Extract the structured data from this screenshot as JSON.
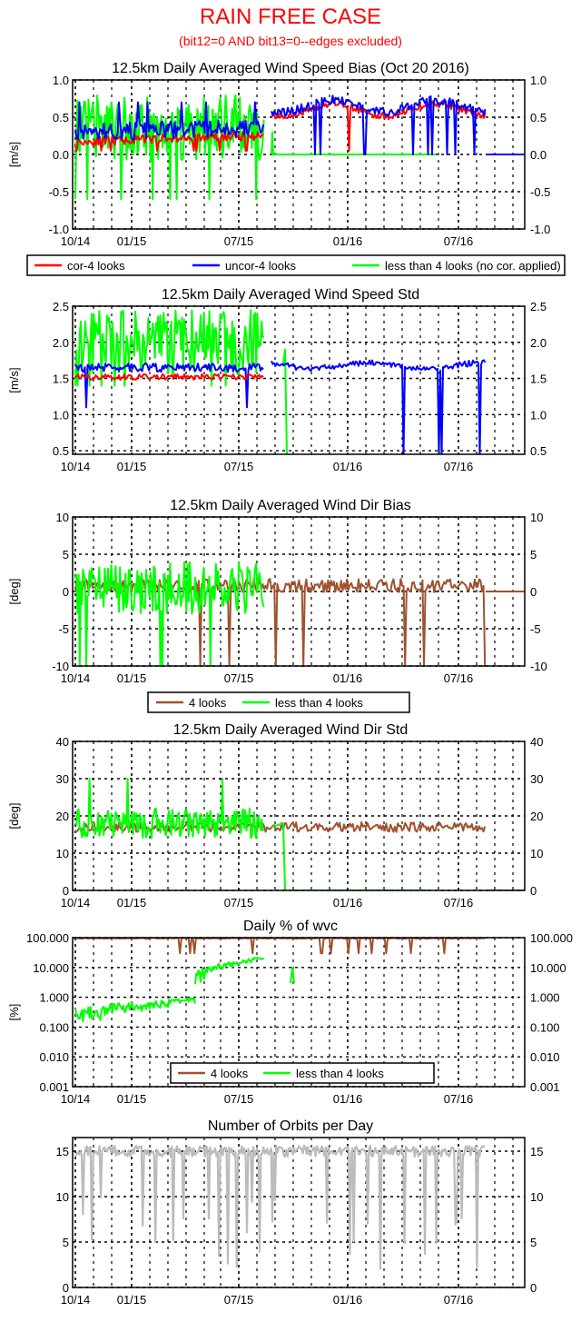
{
  "header": {
    "title": "RAIN FREE CASE",
    "subtitle": "(bit12=0 AND bit13=0--edges excluded)"
  },
  "colors": {
    "cor": "#ff0000",
    "uncor": "#0000ff",
    "less4": "#00ff00",
    "looks4": "#a0522d",
    "orbits": "#bbbbbb"
  },
  "x_ticks": [
    "10/14",
    "01/15",
    "07/15",
    "01/16",
    "07/16"
  ],
  "chart_data": [
    {
      "type": "line",
      "title": "12.5km Daily Averaged Wind Speed Bias (Oct 20 2016)",
      "ylabel": "[m/s]",
      "ylim": [
        -1.0,
        1.0
      ],
      "y_ticks": [
        "1.0",
        "0.5",
        "0.0",
        "-0.5",
        "-1.0"
      ],
      "legend": [
        "cor-4 looks",
        "uncor-4 looks",
        "less than 4 looks (no cor. applied)"
      ],
      "series": [
        {
          "name": "cor-4 looks",
          "values": [
            0.2,
            0.25,
            0.2,
            0.22,
            0.25,
            0.3,
            0.25,
            0.3,
            0.3,
            0.28,
            0.3,
            0.5,
            0.62,
            0.7,
            0.6,
            0.4,
            0.55,
            0.62,
            0.6,
            0.5,
            0.55,
            0.58,
            0.6,
            0.58
          ]
        },
        {
          "name": "uncor-4 looks",
          "values": [
            0.35,
            0.3,
            0.25,
            0.28,
            0.3,
            0.35,
            0.3,
            0.35,
            0.35,
            0.33,
            0.35,
            0.55,
            0.65,
            0.75,
            0.65,
            0.45,
            0.6,
            0.65,
            0.62,
            0.55,
            0.6,
            0.62,
            0.62,
            0.6
          ]
        },
        {
          "name": "less than 4 looks (no cor. applied)",
          "values": [
            0.6,
            0.5,
            0.2,
            0.4,
            0.3,
            0.5,
            0.2,
            0.5,
            0.4,
            0.3,
            0.4,
            0.0,
            0.0,
            0.0,
            0.0,
            0.0,
            0.0
          ]
        }
      ]
    },
    {
      "type": "line",
      "title": "12.5km Daily Averaged Wind Speed Std",
      "ylabel": "[m/s]",
      "ylim": [
        0.45,
        2.5
      ],
      "y_ticks": [
        "2.5",
        "2.0",
        "1.5",
        "1.0",
        "0.5"
      ],
      "series": [
        {
          "name": "cor-4 looks",
          "values": [
            1.55,
            1.5,
            1.52,
            1.5,
            1.5,
            1.48,
            1.5,
            1.52,
            1.48,
            1.5,
            1.45
          ]
        },
        {
          "name": "uncor-4 looks",
          "values": [
            1.7,
            1.65,
            1.65,
            1.6,
            1.65,
            1.6,
            1.62,
            1.65,
            1.6,
            1.62,
            1.6,
            1.72,
            1.68,
            1.65,
            1.65,
            1.7,
            1.72,
            1.75,
            1.72,
            1.7,
            1.72,
            1.72
          ]
        },
        {
          "name": "less than 4 looks (no cor. applied)",
          "values": [
            2.2,
            2.0,
            1.8,
            2.1,
            1.9,
            2.0,
            1.8,
            2.1,
            2.0,
            1.9,
            1.7,
            1.8
          ]
        }
      ]
    },
    {
      "type": "line",
      "title": "12.5km Daily Averaged Wind Dir Bias",
      "ylabel": "[deg]",
      "ylim": [
        -10,
        10
      ],
      "y_ticks": [
        "10",
        "5",
        "0",
        "-5",
        "-10"
      ],
      "legend": [
        "4 looks",
        "less than 4 looks"
      ],
      "series": [
        {
          "name": "4 looks",
          "values": [
            1,
            1.5,
            0.5,
            1,
            1,
            0.5,
            1,
            1.5,
            1,
            1,
            0.5,
            1,
            1.5,
            1,
            0.5,
            1,
            1.5,
            1,
            1.2,
            1,
            0.8,
            1,
            0.5,
            0
          ]
        },
        {
          "name": "less than 4 looks",
          "values": [
            2,
            -1,
            1,
            3,
            -2,
            2,
            0,
            1,
            2,
            -1,
            1,
            0,
            0,
            0,
            0,
            0
          ]
        }
      ]
    },
    {
      "type": "line",
      "title": "12.5km Daily Averaged Wind Dir Std",
      "ylabel": "[deg]",
      "ylim": [
        0,
        40
      ],
      "y_ticks": [
        "40",
        "30",
        "20",
        "10",
        "0"
      ],
      "series": [
        {
          "name": "4 looks",
          "values": [
            16,
            15,
            16,
            15,
            16,
            17,
            16,
            16,
            17,
            17,
            16,
            17,
            17,
            16,
            16,
            17,
            17,
            18,
            18,
            17,
            18,
            18,
            17,
            17
          ]
        },
        {
          "name": "less than 4 looks",
          "values": [
            18,
            17,
            19,
            17,
            18,
            19,
            17,
            18,
            20,
            18,
            17,
            19,
            0,
            0,
            0,
            0
          ]
        }
      ]
    },
    {
      "type": "line",
      "title": "Daily % of wvc",
      "ylabel": "[%]",
      "ylim": [
        0.001,
        100
      ],
      "yscale": "log",
      "y_ticks": [
        "100.000",
        "10.000",
        "1.000",
        "0.100",
        "0.010",
        "0.001"
      ],
      "legend": [
        "4 looks",
        "less than 4 looks"
      ],
      "series": [
        {
          "name": "4 looks",
          "values": [
            100,
            100,
            100,
            100,
            100,
            100,
            100,
            100,
            100,
            100,
            100,
            100,
            100,
            100,
            100,
            100
          ]
        },
        {
          "name": "less than 4 looks",
          "values": [
            0.6,
            0.3,
            0.2,
            0.5,
            0.4,
            0.5,
            0.6,
            0.5,
            3,
            10,
            20,
            5,
            10,
            5
          ]
        }
      ]
    },
    {
      "type": "line",
      "title": "Number of Orbits per Day",
      "ylim": [
        0,
        16.5
      ],
      "y_ticks": [
        "15",
        "10",
        "5",
        "0"
      ],
      "series": [
        {
          "name": "orbits",
          "values": [
            15,
            14,
            15,
            15,
            14,
            15,
            15,
            14,
            15,
            15,
            14,
            15,
            15,
            14,
            15,
            15,
            14,
            15,
            15,
            15
          ]
        }
      ]
    }
  ]
}
